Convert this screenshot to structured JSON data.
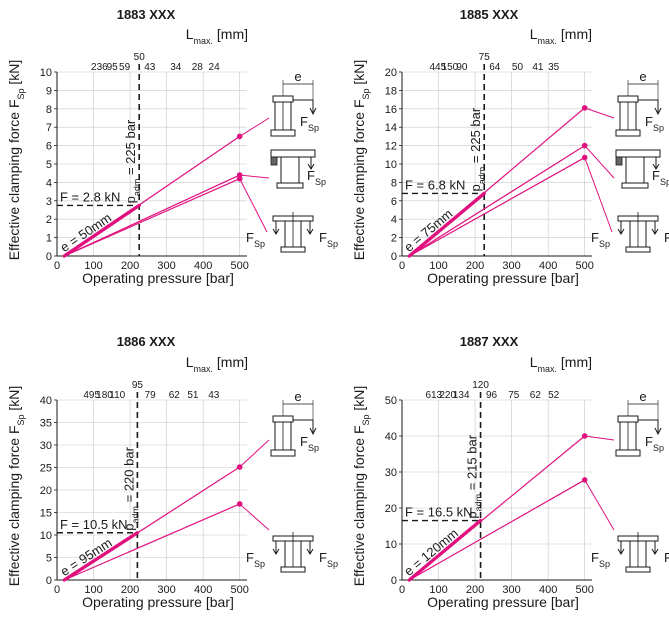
{
  "accent_color": "#e0117f",
  "chart_data": [
    {
      "type": "line",
      "title": "1883 XXX",
      "xlabel": "Operating pressure [bar]",
      "ylabel": "Effective clamping force F",
      "ylabel_sub": "Sp",
      "ylabel_unit": " [kN]",
      "toplabel": "L",
      "toplabel_sub": "max.",
      "toplabel_unit": " [mm]",
      "xlim": [
        0,
        520
      ],
      "ylim": [
        0,
        10
      ],
      "xticks": [
        0,
        100,
        200,
        300,
        400,
        500
      ],
      "yticks": [
        0,
        1,
        2,
        3,
        4,
        5,
        6,
        7,
        8,
        9,
        10
      ],
      "top_ticks": [
        {
          "p": 116,
          "label": "236"
        },
        {
          "p": 151,
          "label": "95"
        },
        {
          "p": 185,
          "label": "59"
        },
        {
          "p": 254,
          "label": "43"
        },
        {
          "p": 325,
          "label": "34"
        },
        {
          "p": 384,
          "label": "28"
        },
        {
          "p": 430,
          "label": "24"
        }
      ],
      "top_marker": {
        "p": 225,
        "label": "50"
      },
      "padm_x": 225,
      "padm_label": "p",
      "padm_sub": "adm",
      "padm_value": " = 225 bar",
      "force_label": "F = 2.8 kN",
      "force_y": 2.75,
      "e_label": "e = 50mm",
      "grid": true,
      "series": [
        {
          "x": [
            20,
            500
          ],
          "y": [
            0,
            6.5
          ]
        },
        {
          "x": [
            20,
            500
          ],
          "y": [
            0,
            4.4
          ]
        },
        {
          "x": [
            20,
            500
          ],
          "y": [
            0,
            4.2
          ]
        }
      ],
      "thick_segment": {
        "x": [
          20,
          225
        ],
        "y": [
          0,
          2.75
        ]
      }
    },
    {
      "type": "line",
      "title": "1885 XXX",
      "xlabel": "Operating pressure [bar]",
      "ylabel": "Effective clamping force F",
      "ylabel_sub": "Sp",
      "ylabel_unit": " [kN]",
      "toplabel": "L",
      "toplabel_sub": "max.",
      "toplabel_unit": " [mm]",
      "xlim": [
        0,
        520
      ],
      "ylim": [
        0,
        20
      ],
      "xticks": [
        0,
        100,
        200,
        300,
        400,
        500
      ],
      "yticks": [
        0,
        2,
        4,
        6,
        8,
        10,
        12,
        14,
        16,
        18,
        20
      ],
      "top_ticks": [
        {
          "p": 98,
          "label": "445"
        },
        {
          "p": 131,
          "label": "150"
        },
        {
          "p": 164,
          "label": "90"
        },
        {
          "p": 254,
          "label": "64"
        },
        {
          "p": 316,
          "label": "50"
        },
        {
          "p": 372,
          "label": "41"
        },
        {
          "p": 415,
          "label": "35"
        }
      ],
      "top_marker": {
        "p": 225,
        "label": "75"
      },
      "padm_x": 225,
      "padm_label": "p",
      "padm_sub": "adm",
      "padm_value": " = 225 bar",
      "force_label": "F = 6.8 kN",
      "force_y": 6.8,
      "e_label": "e = 75mm",
      "grid": true,
      "series": [
        {
          "x": [
            20,
            500
          ],
          "y": [
            0,
            16.1
          ]
        },
        {
          "x": [
            20,
            500
          ],
          "y": [
            0,
            12.0
          ]
        },
        {
          "x": [
            20,
            500
          ],
          "y": [
            0,
            10.7
          ]
        }
      ],
      "thick_segment": {
        "x": [
          20,
          225
        ],
        "y": [
          0,
          6.8
        ]
      }
    },
    {
      "type": "line",
      "title": "1886 XXX",
      "xlabel": "Operating pressure [bar]",
      "ylabel": "Effective clamping force F",
      "ylabel_sub": "Sp",
      "ylabel_unit": " [kN]",
      "toplabel": "L",
      "toplabel_sub": "max.",
      "toplabel_unit": " [mm]",
      "xlim": [
        0,
        520
      ],
      "ylim": [
        0,
        40
      ],
      "xticks": [
        0,
        100,
        200,
        300,
        400,
        500
      ],
      "yticks": [
        0,
        5,
        10,
        15,
        20,
        25,
        30,
        35,
        40
      ],
      "top_ticks": [
        {
          "p": 95,
          "label": "495"
        },
        {
          "p": 130,
          "label": "180"
        },
        {
          "p": 165,
          "label": "110"
        },
        {
          "p": 255,
          "label": "79"
        },
        {
          "p": 321,
          "label": "62"
        },
        {
          "p": 372,
          "label": "51"
        },
        {
          "p": 429,
          "label": "43"
        }
      ],
      "top_marker": {
        "p": 220,
        "label": "95"
      },
      "padm_x": 220,
      "padm_label": "p",
      "padm_sub": "adm",
      "padm_value": " = 220 bar",
      "force_label": "F = 10.5 kN",
      "force_y": 10.5,
      "e_label": "e = 95mm",
      "grid": true,
      "series": [
        {
          "x": [
            20,
            500
          ],
          "y": [
            0,
            25.1
          ]
        },
        {
          "x": [
            20,
            500
          ],
          "y": [
            0,
            16.9
          ]
        }
      ],
      "thick_segment": {
        "x": [
          20,
          220
        ],
        "y": [
          0,
          10.5
        ]
      }
    },
    {
      "type": "line",
      "title": "1887 XXX",
      "xlabel": "Operating pressure [bar]",
      "ylabel": "Effective clamping force F",
      "ylabel_sub": "Sp",
      "ylabel_unit": " [kN]",
      "toplabel": "L",
      "toplabel_sub": "max.",
      "toplabel_unit": " [mm]",
      "xlim": [
        0,
        520
      ],
      "ylim": [
        0,
        50
      ],
      "xticks": [
        0,
        100,
        200,
        300,
        400,
        500
      ],
      "yticks": [
        0,
        10,
        20,
        30,
        40,
        50
      ],
      "top_ticks": [
        {
          "p": 87,
          "label": "613"
        },
        {
          "p": 125,
          "label": "220"
        },
        {
          "p": 162,
          "label": "134"
        },
        {
          "p": 245,
          "label": "96"
        },
        {
          "p": 306,
          "label": "75"
        },
        {
          "p": 365,
          "label": "62"
        },
        {
          "p": 415,
          "label": "52"
        }
      ],
      "top_marker": {
        "p": 215,
        "label": "120"
      },
      "padm_x": 215,
      "padm_label": "p",
      "padm_sub": "adm",
      "padm_value": " = 215 bar",
      "force_label": "F = 16.5 kN",
      "force_y": 16.5,
      "e_label": "e = 120mm",
      "grid": true,
      "series": [
        {
          "x": [
            20,
            500
          ],
          "y": [
            0,
            40
          ]
        },
        {
          "x": [
            20,
            500
          ],
          "y": [
            0,
            27.8
          ]
        }
      ],
      "thick_segment": {
        "x": [
          20,
          215
        ],
        "y": [
          0,
          16.5
        ]
      }
    }
  ],
  "diagram_labels": {
    "e": "e",
    "force": "F",
    "force_sub": "Sp"
  }
}
